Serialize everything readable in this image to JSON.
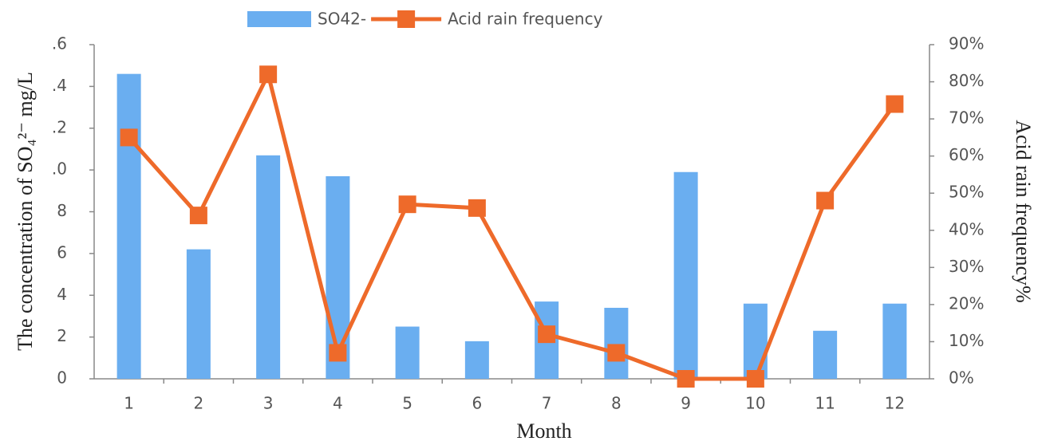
{
  "chart_data": {
    "type": "combo",
    "x_label": "Month",
    "y_label": "The concentration of SO₄²⁻ mg/L",
    "y2_label": "Acid rain frequency%",
    "categories": [
      "1",
      "2",
      "3",
      "4",
      "5",
      "6",
      "7",
      "8",
      "9",
      "10",
      "11",
      "12"
    ],
    "series": [
      {
        "name": "SO42-",
        "type": "bar",
        "color": "#6aaef0",
        "values": [
          14.6,
          6.2,
          10.7,
          9.7,
          2.5,
          1.8,
          3.7,
          3.4,
          9.9,
          3.6,
          2.3,
          3.6
        ]
      },
      {
        "name": "Acid rain frequency",
        "type": "line",
        "axis": "y2",
        "color": "#ee6a2a",
        "values": [
          65,
          44,
          82,
          7,
          47,
          46,
          12,
          7,
          0,
          0,
          48,
          74
        ]
      }
    ],
    "ylim": [
      0,
      16
    ],
    "yticks": [
      0,
      2,
      4,
      6,
      8,
      {
        "value": 10,
        "label": ".0"
      },
      {
        "value": 12,
        "label": ".2"
      },
      {
        "value": 14,
        "label": ".4"
      },
      {
        "value": 16,
        "label": ".6"
      }
    ],
    "y2lim": [
      0,
      90
    ],
    "y2ticks": [
      {
        "value": 0,
        "label": "0%"
      },
      {
        "value": 10,
        "label": "10%"
      },
      {
        "value": 20,
        "label": "20%"
      },
      {
        "value": 30,
        "label": "30%"
      },
      {
        "value": 40,
        "label": "40%"
      },
      {
        "value": 50,
        "label": "50%"
      },
      {
        "value": 60,
        "label": "60%"
      },
      {
        "value": 70,
        "label": "70%"
      },
      {
        "value": 80,
        "label": "80%"
      },
      {
        "value": 90,
        "label": "90%"
      }
    ],
    "grid": false
  }
}
